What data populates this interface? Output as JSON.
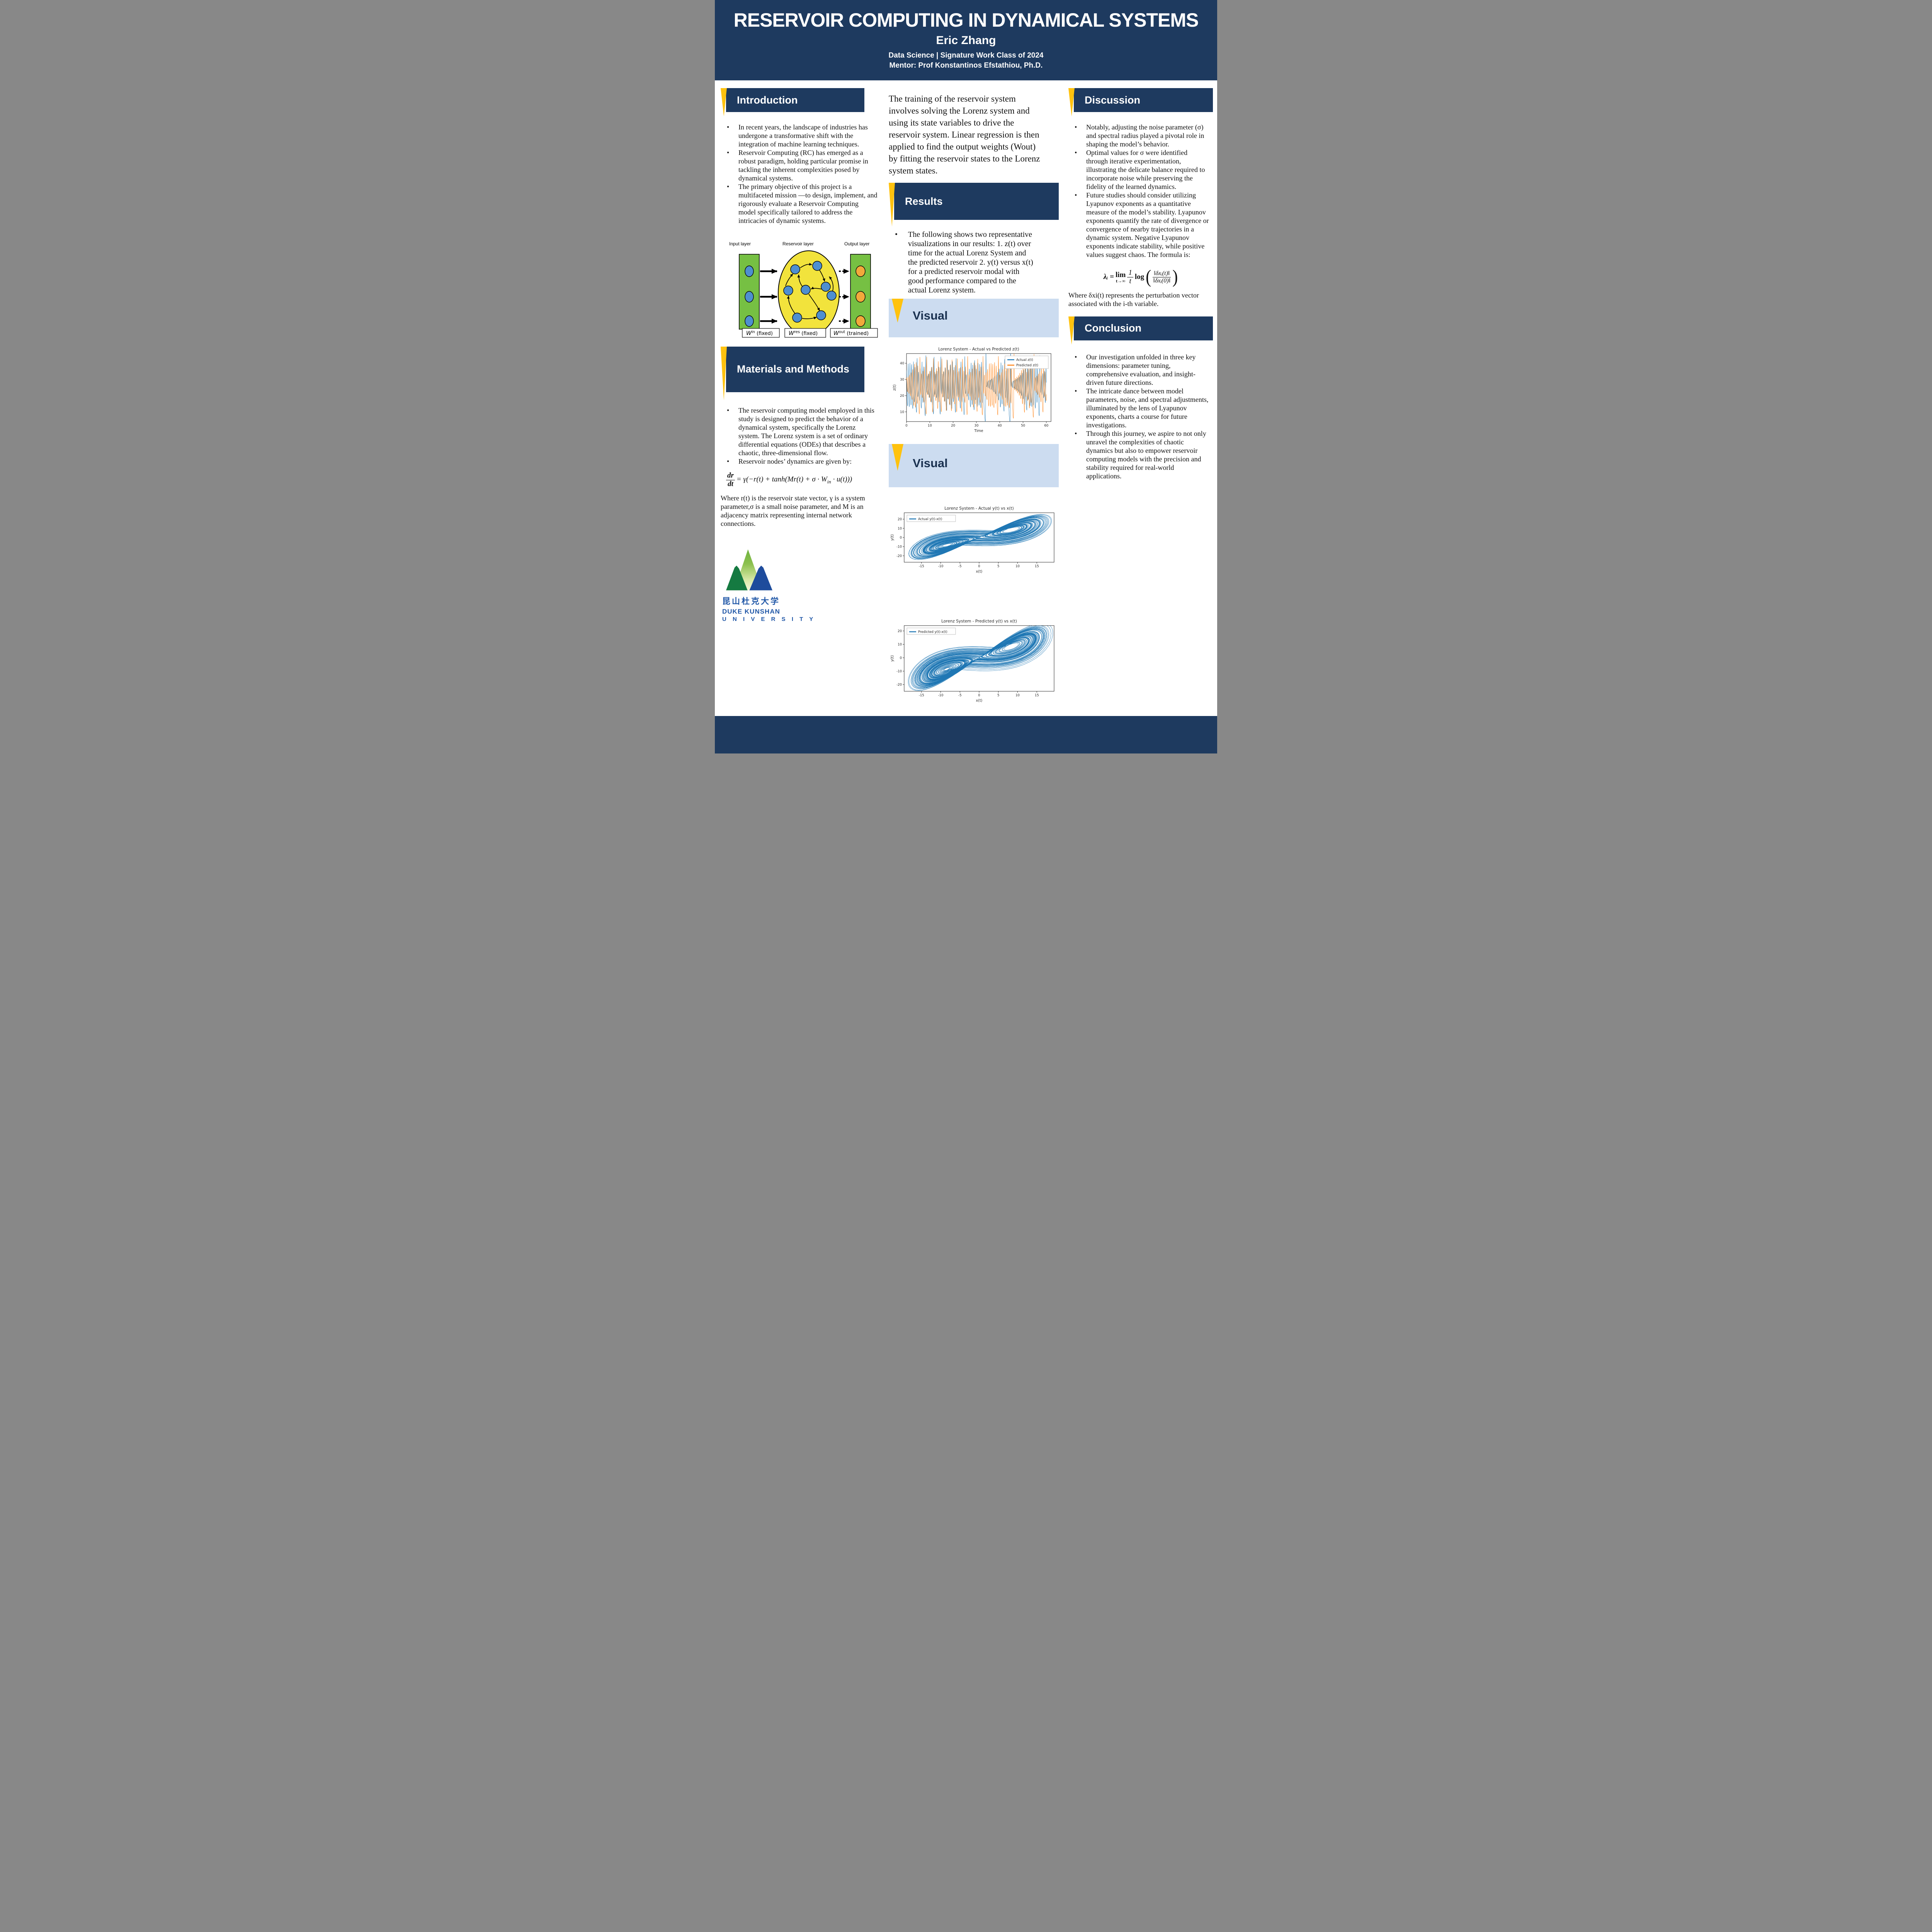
{
  "header": {
    "title": "RESERVOIR COMPUTING IN DYNAMICAL SYSTEMS",
    "author": "Eric Zhang",
    "subtitle1": "Data Science | Signature Work Class of 2024",
    "subtitle2": "Mentor: Prof Konstantinos Efstathiou, Ph.D."
  },
  "colors": {
    "navy": "#1E3A5F",
    "accent_yellow": "#FFC20E",
    "band_blue": "#CCDCF0",
    "band_text": "#1A3150",
    "line_blue": "#1f77b4",
    "line_orange": "#ff7f0e"
  },
  "sections": {
    "introduction": {
      "title": "Introduction",
      "bullets": [
        "In recent years, the landscape of industries has undergone a transformative shift with the integration of machine learning techniques.",
        "Reservoir Computing (RC) has emerged as a robust paradigm, holding particular promise in tackling the inherent complexities posed by dynamical systems.",
        "The primary objective of this project is a multifaceted mission —to design, implement, and rigorously evaluate a Reservoir Computing model specifically tailored to address the intricacies of dynamic systems."
      ]
    },
    "materials": {
      "title": "Materials and Methods",
      "bullets": [
        "The reservoir computing model employed in this study is designed to predict the behavior of a dynamical system, specifically the Lorenz system. The Lorenz system is a set of ordinary differential equations (ODEs) that describes a chaotic, three-dimensional flow.",
        "Reservoir nodes’ dynamics are given by:"
      ],
      "where": "Where r(t) is the reservoir state vector, γ is a system parameter,σ is a small noise parameter, and M is an adjacency matrix representing internal network connections."
    },
    "middle_intro": "The training of the reservoir system involves solving the Lorenz system and using its state variables to drive the reservoir system. Linear regression is then applied to find the output weights (Wout) by fitting the reservoir states to the Lorenz system states.",
    "results": {
      "title": "Results",
      "bullets": [
        "The following shows two representative visualizations in our results: 1. z(t) over time for the actual Lorenz System and the predicted reservoir  2. y(t) versus x(t) for a predicted reservoir modal with good performance compared to the actual Lorenz system."
      ]
    },
    "visual1": {
      "title": "Visual"
    },
    "visual2": {
      "title": "Visual"
    },
    "discussion": {
      "title": "Discussion",
      "bullets": [
        "Notably, adjusting the noise parameter (σ) and spectral radius played a pivotal role in shaping the model’s behavior.",
        "Optimal values for σ were identified through iterative experimentation, illustrating the delicate balance required to incorporate noise while preserving the fidelity of the learned dynamics.",
        "Future studies should consider utilizing Lyapunov exponents as a quantitative measure of the model’s stability. Lyapunov exponents quantify the rate of divergence or convergence of nearby trajectories in a dynamic system. Negative Lyapunov exponents indicate stability, while positive values suggest chaos. The formula is:"
      ],
      "where": "Where δxi(t) represents the perturbation vector associated with the i-th variable."
    },
    "conclusion": {
      "title": "Conclusion",
      "bullets": [
        "Our investigation unfolded in three key dimensions: parameter tuning, comprehensive evaluation, and insight-driven future directions.",
        "The intricate dance between model parameters, noise, and spectral adjustments, illuminated by the lens of Lyapunov exponents, charts a course for future investigations.",
        "Through this journey, we aspire to not only unravel the complexities of chaotic dynamics but also to empower reservoir computing models with the precision and stability required for real-world applications."
      ]
    }
  },
  "formulas": {
    "reservoir": {
      "num": "dr",
      "den": "dt",
      "rhs": "= γ(−r(t) + tanh(Mr(t) + σ · W",
      "sub": "in",
      "tail": " · u(t)))"
    },
    "lyapunov": {
      "lhs": "λᵢ =",
      "lim_top": "lim",
      "lim_bot": "t→∞",
      "f1num": "1",
      "f1den": "t",
      "log": "log",
      "f2num": "‖δxᵢ(t)‖",
      "f2den": "‖δxᵢ(0)‖",
      "lparen": "(",
      "rparen": ")"
    }
  },
  "diagram": {
    "input_label": "Input layer",
    "reservoir_label": "Reservoir layer",
    "output_label": "Output layer",
    "w_in_base": "W",
    "w_in_sup": "in",
    "w_in_rest": " (fixed)",
    "w_res_base": "W",
    "w_res_sup": "res",
    "w_res_rest": " (fixed)",
    "w_out_base": "W",
    "w_out_sup": "out",
    "w_out_rest": " (trained)"
  },
  "logo": {
    "chinese": "昆山杜克大学",
    "line1": "DUKE KUNSHAN",
    "line2": "U N I V E R S I T Y"
  },
  "chart_data": [
    {
      "type": "line",
      "plot": "z_t",
      "title": "Lorenz System - Actual vs Predicted z(t)",
      "xlabel": "Time",
      "ylabel": "z(t)",
      "xlim": [
        0,
        62
      ],
      "ylim": [
        4,
        46
      ],
      "xticks": [
        0,
        10,
        20,
        30,
        40,
        50,
        60
      ],
      "yticks": [
        10,
        20,
        30,
        40
      ],
      "grid": false,
      "legend_position": "upper right",
      "series": [
        {
          "name": "Actual z(t)",
          "color": "#1f77b4"
        },
        {
          "name": "Predicted z(t)",
          "color": "#ff7f0e"
        }
      ],
      "description": "Chaotic Lorenz z(t) oscillating between about 7 and 45 over time 0-60; the predicted trajectory tracks the actual one and gradually decorrelates."
    },
    {
      "type": "line",
      "plot": "xy_actual",
      "title": "Lorenz System - Actual y(t) vs x(t)",
      "xlabel": "x(t)",
      "ylabel": "y(t)",
      "xlim": [
        -19.5,
        19.5
      ],
      "ylim": [
        -27,
        27
      ],
      "xticks": [
        -15,
        -10,
        -5,
        0,
        5,
        10,
        15
      ],
      "yticks": [
        -20,
        -10,
        0,
        10,
        20
      ],
      "grid": false,
      "legend_position": "upper left",
      "series": [
        {
          "name": "Actual y(t)-x(t)",
          "color": "#1f77b4"
        }
      ],
      "description": "Butterfly-shaped Lorenz attractor traced in the x-y plane, two lobes centered near (-9,-9) and (9,9)."
    },
    {
      "type": "line",
      "plot": "xy_predicted",
      "title": "Lorenz System - Predicted y(t) vs x(t)",
      "xlabel": "x(t)",
      "ylabel": "y(t)",
      "xlim": [
        -19.5,
        19.5
      ],
      "ylim": [
        -25,
        24
      ],
      "xticks": [
        -15,
        -10,
        -5,
        0,
        5,
        10,
        15
      ],
      "yticks": [
        -20,
        -10,
        0,
        10,
        20
      ],
      "grid": false,
      "legend_position": "upper left",
      "series": [
        {
          "name": "Predicted y(t)-x(t)",
          "color": "#1f77b4"
        }
      ],
      "description": "Predicted reservoir-model trajectory reproducing the two-lobed Lorenz butterfly attractor in the x-y plane."
    }
  ]
}
